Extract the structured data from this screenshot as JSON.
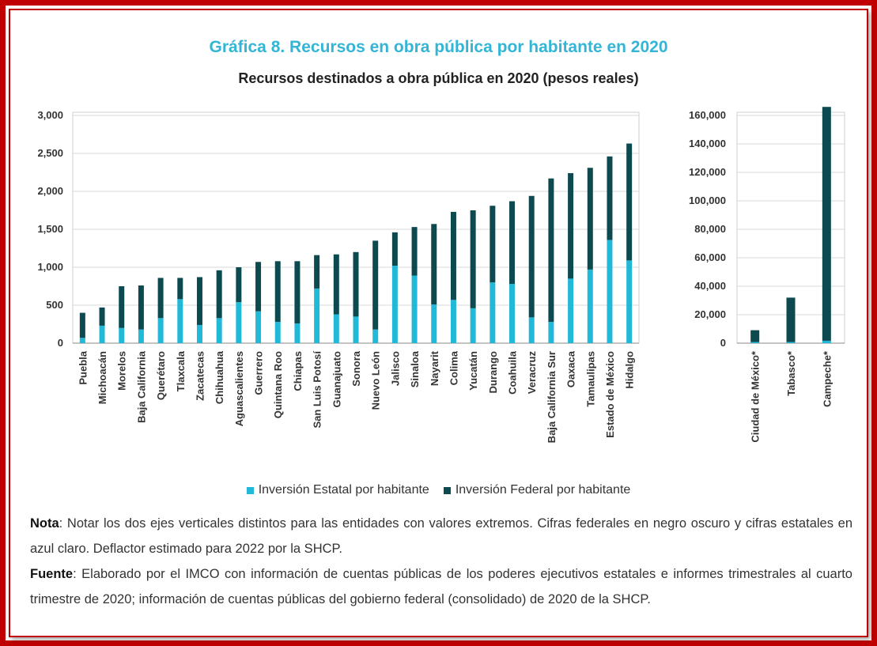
{
  "title": "Gráfica 8. Recursos en obra pública por habitante en 2020",
  "subtitle": "Recursos destinados a obra pública en 2020 (pesos reales)",
  "colors": {
    "estatal": "#22b8d8",
    "federal": "#0d4a50",
    "frame": "#c00000",
    "title": "#33b5d6"
  },
  "legend": {
    "estatal": "Inversión Estatal por habitante",
    "federal": "Inversión Federal por habitante"
  },
  "note": {
    "label": "Nota",
    "text": ": Notar los dos ejes verticales distintos para las entidades con valores extremos. Cifras federales en negro oscuro y cifras estatales en azul claro. Deflactor estimado para 2022 por la SHCP."
  },
  "source": {
    "label": "Fuente",
    "text": ": Elaborado por el IMCO con información de cuentas públicas de los poderes ejecutivos estatales e informes trimestrales al cuarto trimestre de 2020; información de cuentas públicas del gobierno federal (consolidado) de 2020 de la SHCP."
  },
  "chart_data": [
    {
      "type": "bar",
      "stacked": true,
      "categories": [
        "Puebla",
        "Michoacán",
        "Morelos",
        "Baja California",
        "Querétaro",
        "Tlaxcala",
        "Zacatecas",
        "Chihuahua",
        "Aguascalientes",
        "Guerrero",
        "Quintana Roo",
        "Chiapas",
        "San Luis Potosí",
        "Guanajuato",
        "Sonora",
        "Nuevo León",
        "Jalisco",
        "Sinaloa",
        "Nayarit",
        "Colima",
        "Yucatán",
        "Durango",
        "Coahuila",
        "Veracruz",
        "Baja California Sur",
        "Oaxaca",
        "Tamaulipas",
        "Estado de México",
        "Hidalgo"
      ],
      "series": [
        {
          "name": "Inversión Estatal por habitante",
          "values": [
            70,
            230,
            200,
            180,
            330,
            580,
            240,
            330,
            540,
            420,
            280,
            260,
            720,
            380,
            350,
            180,
            1020,
            890,
            510,
            570,
            460,
            800,
            780,
            340,
            280,
            850,
            970,
            1360,
            1090
          ]
        },
        {
          "name": "Inversión Federal por habitante",
          "values": [
            330,
            240,
            550,
            580,
            530,
            280,
            630,
            630,
            460,
            650,
            800,
            820,
            440,
            790,
            850,
            1170,
            440,
            640,
            1060,
            1160,
            1290,
            1010,
            1090,
            1600,
            1890,
            1390,
            1340,
            1100,
            1540
          ]
        }
      ],
      "yticks": [
        "0",
        "500",
        "1,000",
        "1,500",
        "2,000",
        "2,500",
        "3,000"
      ],
      "ylim": [
        0,
        3000
      ],
      "grid": true
    },
    {
      "type": "bar",
      "stacked": true,
      "categories": [
        "Ciudad de México*",
        "Tabasco*",
        "Campeche*"
      ],
      "series": [
        {
          "name": "Inversión Estatal por habitante",
          "values": [
            800,
            800,
            1700
          ]
        },
        {
          "name": "Inversión Federal por habitante",
          "values": [
            8300,
            31200,
            164300
          ]
        }
      ],
      "yticks": [
        "0",
        "20,000",
        "40,000",
        "60,000",
        "80,000",
        "100,000",
        "120,000",
        "140,000",
        "160,000"
      ],
      "ylim": [
        0,
        160000
      ],
      "grid": true
    }
  ]
}
